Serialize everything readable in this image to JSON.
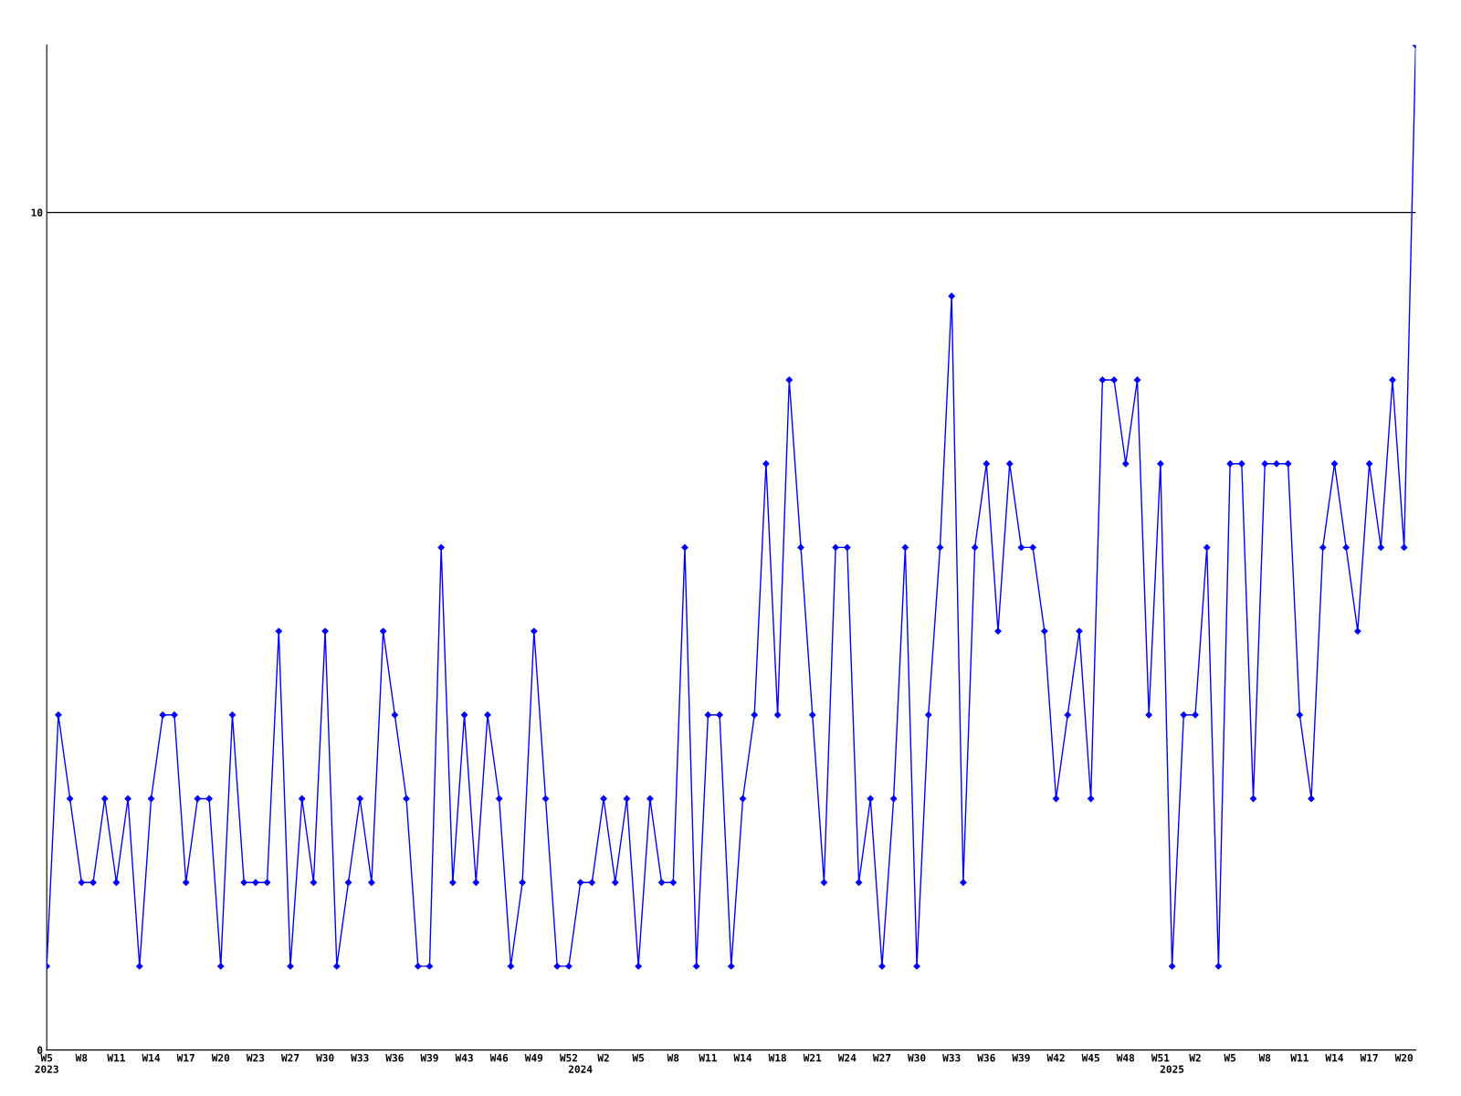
{
  "chart_data": {
    "type": "line",
    "categories": [
      "W5\n2023",
      null,
      null,
      "W8",
      null,
      null,
      "W11",
      null,
      null,
      "W14",
      null,
      null,
      "W17",
      null,
      null,
      "W20",
      null,
      null,
      "W23",
      null,
      null,
      "W27",
      null,
      null,
      "W30",
      null,
      null,
      "W33",
      null,
      null,
      "W36",
      null,
      null,
      "W39",
      null,
      null,
      "W43",
      null,
      null,
      "W46",
      null,
      null,
      "W49",
      null,
      null,
      "W52",
      "\n2024",
      null,
      "W2",
      null,
      null,
      "W5",
      null,
      null,
      "W8",
      null,
      null,
      "W11",
      null,
      null,
      "W14",
      null,
      null,
      "W18",
      null,
      null,
      "W21",
      null,
      null,
      "W24",
      null,
      null,
      "W27",
      null,
      null,
      "W30",
      null,
      null,
      "W33",
      null,
      null,
      "W36",
      null,
      null,
      "W39",
      null,
      null,
      "W42",
      null,
      null,
      "W45",
      null,
      null,
      "W48",
      null,
      null,
      "W51",
      "\n2025",
      null,
      "W2",
      null,
      null,
      "W5",
      null,
      null,
      "W8",
      null,
      null,
      "W11",
      null,
      null,
      "W14",
      null,
      null,
      "W17",
      null,
      null,
      "W20",
      null
    ],
    "series": [
      {
        "color": "#0000ff",
        "values": [
          1,
          4,
          3,
          2,
          2,
          3,
          2,
          3,
          1,
          3,
          4,
          4,
          2,
          3,
          3,
          1,
          4,
          2,
          2,
          2,
          5,
          1,
          3,
          2,
          5,
          1,
          2,
          3,
          2,
          5,
          4,
          3,
          1,
          1,
          6,
          2,
          4,
          2,
          4,
          3,
          1,
          2,
          5,
          3,
          1,
          1,
          2,
          2,
          3,
          2,
          3,
          1,
          3,
          2,
          2,
          6,
          1,
          4,
          4,
          1,
          3,
          4,
          7,
          4,
          8,
          6,
          4,
          2,
          6,
          6,
          2,
          3,
          1,
          3,
          6,
          1,
          4,
          6,
          9,
          2,
          6,
          7,
          5,
          7,
          6,
          6,
          5,
          3,
          4,
          5,
          3,
          8,
          8,
          7,
          8,
          4,
          7,
          1,
          4,
          4,
          6,
          1,
          7,
          7,
          3,
          7,
          7,
          7,
          4,
          3,
          6,
          7,
          6,
          5,
          7,
          6,
          8,
          6,
          12
        ]
      }
    ],
    "ylim": [
      0,
      12
    ],
    "yticks": [
      0,
      10
    ],
    "ref_lines": [
      {
        "axis": "y",
        "value": 10,
        "color": "#000000"
      }
    ],
    "grid": false,
    "marker": "diamond",
    "line_style": "solid",
    "legend": false
  }
}
